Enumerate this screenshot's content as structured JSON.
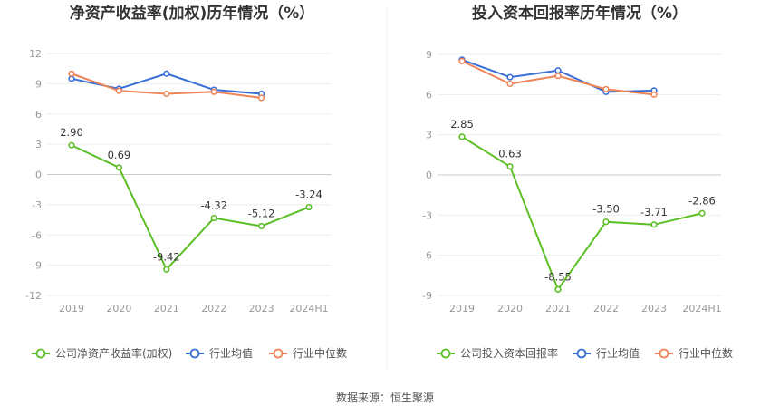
{
  "chart_data": [
    {
      "type": "line",
      "title": "净资产收益率(加权)历年情况（%）",
      "categories": [
        "2019",
        "2020",
        "2021",
        "2022",
        "2023",
        "2024H1"
      ],
      "yticks": [
        "12",
        "9",
        "6",
        "3",
        "0",
        "-3",
        "-6",
        "-9",
        "-12"
      ],
      "ylim": [
        -12,
        12
      ],
      "grid": true,
      "legend_position": "bottom",
      "series": [
        {
          "name": "公司净资产收益率(加权)",
          "color": "#5cbf26",
          "values": [
            2.9,
            0.69,
            -9.42,
            -4.32,
            -5.12,
            -3.24
          ],
          "labels": [
            "2.90",
            "0.69",
            "-9.42",
            "-4.32",
            "-5.12",
            "-3.24"
          ]
        },
        {
          "name": "行业均值",
          "color": "#3a6fd8",
          "values": [
            9.5,
            8.5,
            10.0,
            8.4,
            8.0,
            null
          ]
        },
        {
          "name": "行业中位数",
          "color": "#f08458",
          "values": [
            10.0,
            8.3,
            8.0,
            8.2,
            7.6,
            null
          ]
        }
      ]
    },
    {
      "type": "line",
      "title": "投入资本回报率历年情况（%）",
      "categories": [
        "2019",
        "2020",
        "2021",
        "2022",
        "2023",
        "2024H1"
      ],
      "yticks": [
        "9",
        "6",
        "3",
        "0",
        "-3",
        "-6",
        "-9"
      ],
      "ylim": [
        -9,
        9
      ],
      "grid": true,
      "legend_position": "bottom",
      "series": [
        {
          "name": "公司投入资本回报率",
          "color": "#5cbf26",
          "values": [
            2.85,
            0.63,
            -8.55,
            -3.5,
            -3.71,
            -2.86
          ],
          "labels": [
            "2.85",
            "0.63",
            "-8.55",
            "-3.50",
            "-3.71",
            "-2.86"
          ]
        },
        {
          "name": "行业均值",
          "color": "#3a6fd8",
          "values": [
            8.6,
            7.3,
            7.8,
            6.2,
            6.3,
            null
          ]
        },
        {
          "name": "行业中位数",
          "color": "#f08458",
          "values": [
            8.5,
            6.8,
            7.4,
            6.4,
            6.0,
            null
          ]
        }
      ]
    }
  ],
  "footer": {
    "source": "数据来源：恒生聚源"
  }
}
